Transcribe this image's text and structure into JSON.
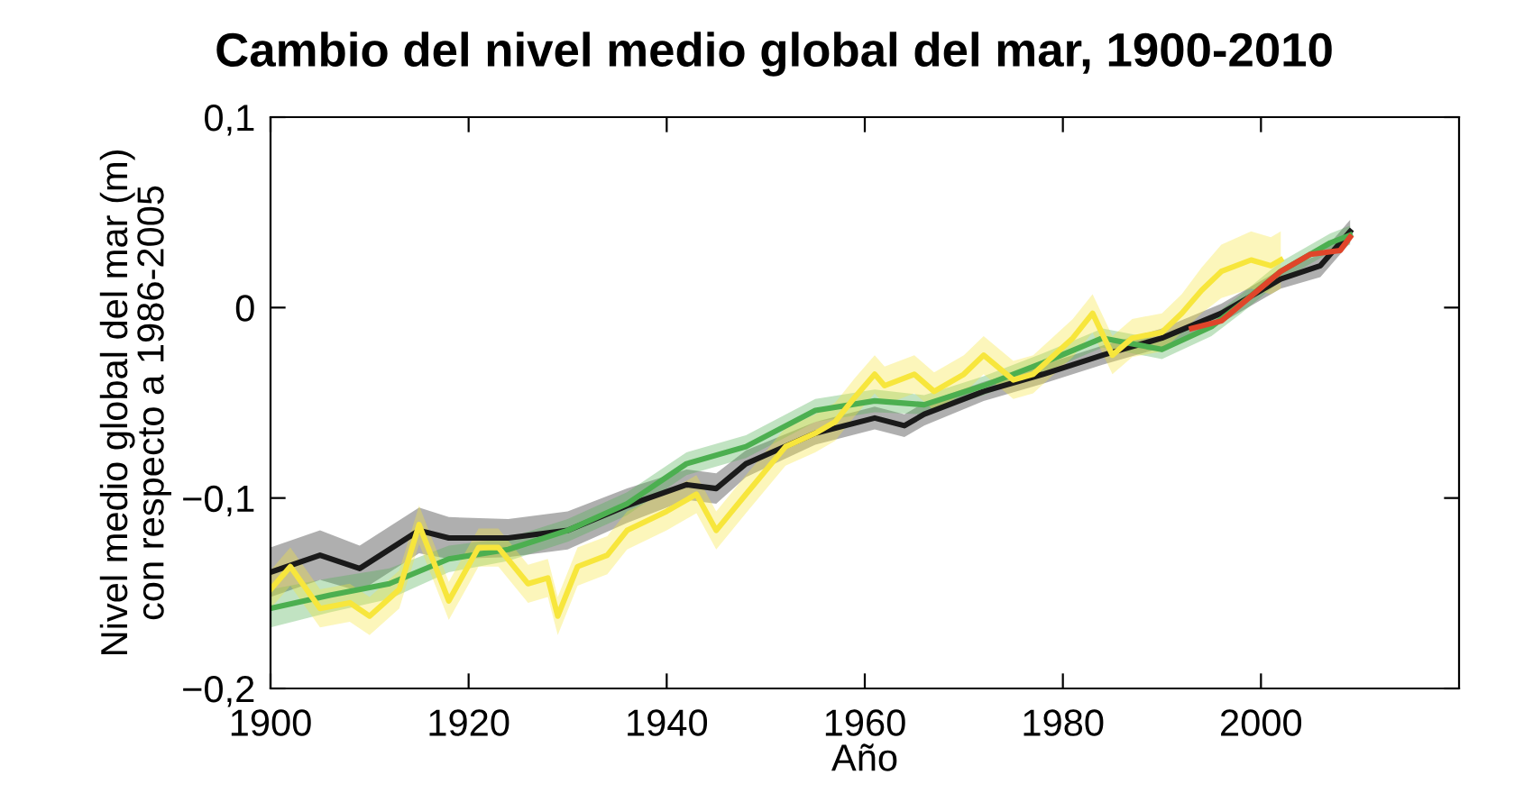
{
  "chart_data": {
    "type": "line",
    "title": "Cambio del nivel medio global del mar, 1900-2010",
    "xlabel": "Año",
    "ylabel": "Nivel medio global del mar (m)\ncon respecto a 1986-2005",
    "xlim": [
      1900,
      2020
    ],
    "ylim": [
      -0.2,
      0.1
    ],
    "xticks": [
      1900,
      1920,
      1940,
      1960,
      1980,
      2000
    ],
    "yticks": [
      {
        "value": -0.2,
        "label": "−0,2"
      },
      {
        "value": -0.1,
        "label": "−0,1"
      },
      {
        "value": 0,
        "label": "0"
      },
      {
        "value": 0.1,
        "label": "0,1"
      }
    ],
    "grid": false,
    "legend": false,
    "series": [
      {
        "color": "#1a1a1a",
        "x": [
          1900,
          1905,
          1909,
          1915,
          1918,
          1924,
          1930,
          1936,
          1942,
          1945,
          1948,
          1955,
          1961,
          1964,
          1966,
          1972,
          1978,
          1984,
          1990,
          1996,
          2002,
          2006,
          2009
        ],
        "values": [
          -0.139,
          -0.13,
          -0.137,
          -0.117,
          -0.121,
          -0.121,
          -0.117,
          -0.104,
          -0.093,
          -0.095,
          -0.082,
          -0.066,
          -0.058,
          -0.062,
          -0.056,
          -0.044,
          -0.035,
          -0.025,
          -0.016,
          -0.003,
          0.015,
          0.022,
          0.04
        ],
        "lower": [
          -0.152,
          -0.143,
          -0.149,
          -0.129,
          -0.132,
          -0.131,
          -0.127,
          -0.113,
          -0.101,
          -0.103,
          -0.089,
          -0.072,
          -0.064,
          -0.068,
          -0.062,
          -0.049,
          -0.04,
          -0.03,
          -0.021,
          -0.008,
          0.01,
          0.016,
          0.034
        ],
        "upper": [
          -0.126,
          -0.117,
          -0.125,
          -0.105,
          -0.11,
          -0.111,
          -0.107,
          -0.095,
          -0.085,
          -0.087,
          -0.075,
          -0.06,
          -0.052,
          -0.056,
          -0.05,
          -0.039,
          -0.03,
          -0.02,
          -0.011,
          0.002,
          0.02,
          0.028,
          0.046
        ]
      },
      {
        "color": "#4caf50",
        "x": [
          1900,
          1906,
          1912,
          1918,
          1924,
          1930,
          1936,
          1942,
          1948,
          1955,
          1961,
          1966,
          1972,
          1978,
          1984,
          1990,
          1995,
          1998,
          2002,
          2007,
          2009
        ],
        "values": [
          -0.158,
          -0.151,
          -0.145,
          -0.132,
          -0.127,
          -0.117,
          -0.103,
          -0.082,
          -0.073,
          -0.054,
          -0.049,
          -0.051,
          -0.041,
          -0.029,
          -0.016,
          -0.022,
          -0.01,
          0.002,
          0.019,
          0.034,
          0.038
        ],
        "lower": [
          -0.168,
          -0.16,
          -0.153,
          -0.139,
          -0.133,
          -0.123,
          -0.109,
          -0.088,
          -0.079,
          -0.06,
          -0.055,
          -0.056,
          -0.046,
          -0.034,
          -0.021,
          -0.027,
          -0.015,
          -0.003,
          0.014,
          0.029,
          0.033
        ],
        "upper": [
          -0.148,
          -0.142,
          -0.137,
          -0.125,
          -0.121,
          -0.111,
          -0.097,
          -0.076,
          -0.067,
          -0.048,
          -0.043,
          -0.046,
          -0.036,
          -0.024,
          -0.011,
          -0.017,
          -0.005,
          0.007,
          0.024,
          0.039,
          0.043
        ]
      },
      {
        "color": "#f7e63c",
        "x": [
          1900,
          1902,
          1905,
          1908,
          1910,
          1913,
          1915,
          1918,
          1921,
          1923,
          1926,
          1928,
          1929,
          1931,
          1934,
          1936,
          1940,
          1943,
          1945,
          1948,
          1952,
          1955,
          1957,
          1959,
          1961,
          1962,
          1965,
          1967,
          1970,
          1972,
          1975,
          1977,
          1981,
          1983,
          1985,
          1987,
          1990,
          1992,
          1994,
          1996,
          1999,
          2001,
          2002
        ],
        "values": [
          -0.148,
          -0.136,
          -0.158,
          -0.155,
          -0.162,
          -0.148,
          -0.114,
          -0.154,
          -0.126,
          -0.126,
          -0.145,
          -0.142,
          -0.162,
          -0.136,
          -0.13,
          -0.117,
          -0.107,
          -0.098,
          -0.117,
          -0.098,
          -0.073,
          -0.066,
          -0.06,
          -0.047,
          -0.035,
          -0.041,
          -0.035,
          -0.044,
          -0.035,
          -0.025,
          -0.038,
          -0.035,
          -0.016,
          -0.003,
          -0.025,
          -0.016,
          -0.013,
          -0.003,
          0.009,
          0.019,
          0.025,
          0.022,
          0.025
        ],
        "lower": [
          -0.158,
          -0.146,
          -0.168,
          -0.165,
          -0.172,
          -0.158,
          -0.124,
          -0.164,
          -0.136,
          -0.136,
          -0.155,
          -0.152,
          -0.172,
          -0.146,
          -0.14,
          -0.127,
          -0.117,
          -0.108,
          -0.127,
          -0.108,
          -0.083,
          -0.076,
          -0.07,
          -0.057,
          -0.045,
          -0.051,
          -0.045,
          -0.054,
          -0.045,
          -0.035,
          -0.048,
          -0.045,
          -0.026,
          -0.013,
          -0.035,
          -0.026,
          -0.023,
          -0.013,
          -0.003,
          0.005,
          0.01,
          0.007,
          0.01
        ],
        "upper": [
          -0.138,
          -0.126,
          -0.148,
          -0.145,
          -0.152,
          -0.138,
          -0.104,
          -0.144,
          -0.116,
          -0.116,
          -0.135,
          -0.132,
          -0.152,
          -0.126,
          -0.12,
          -0.107,
          -0.097,
          -0.088,
          -0.107,
          -0.088,
          -0.063,
          -0.056,
          -0.05,
          -0.037,
          -0.025,
          -0.031,
          -0.025,
          -0.034,
          -0.025,
          -0.015,
          -0.028,
          -0.025,
          -0.006,
          0.007,
          -0.015,
          -0.006,
          -0.003,
          0.007,
          0.021,
          0.033,
          0.04,
          0.037,
          0.04
        ]
      },
      {
        "color": "#e0452a",
        "x": [
          1993,
          1996,
          1999,
          2002,
          2005,
          2008,
          2009
        ],
        "values": [
          -0.011,
          -0.007,
          0.006,
          0.019,
          0.028,
          0.03,
          0.037
        ]
      }
    ]
  }
}
